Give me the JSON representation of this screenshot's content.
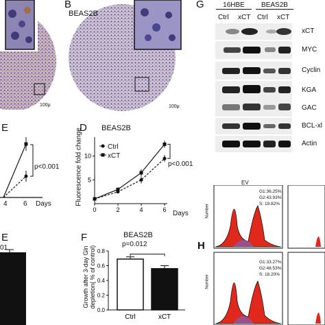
{
  "panels": {
    "A": {
      "letter": "A",
      "scale": "100μ"
    },
    "B": {
      "letter": "B",
      "title": "BEAS2B",
      "scale": "100μ"
    },
    "C": {
      "letter": "E",
      "pvalue": "p<0.001",
      "xlabel": "Days",
      "ticks": [
        "4",
        "6"
      ]
    },
    "D": {
      "letter": "D",
      "title": "BEAS2B",
      "ylabel": "Fluorescence fold change",
      "pvalue": "p<0.001",
      "xlabel": "Days",
      "xticks": [
        "0",
        "2",
        "4",
        "6"
      ],
      "yticks": [
        "5",
        "10"
      ],
      "legend": [
        {
          "name": "Ctrl"
        },
        {
          "name": "xCT"
        }
      ]
    },
    "E": {
      "letter": "E",
      "fragment": "01"
    },
    "F": {
      "letter": "F",
      "title": "BEAS2B",
      "pvalue": "p=0.012",
      "ylabel_lines": [
        "Growth after 3-day Gln",
        "depletion( % of control)"
      ],
      "yticks": [
        "0.0",
        "0.2",
        "0.4",
        "0.6",
        "0.8"
      ],
      "categories": [
        "Ctrl",
        "xCT"
      ]
    },
    "G": {
      "letter": "G",
      "groups": [
        "16HBE",
        "BEAS2B"
      ],
      "lanes": [
        "Ctrl",
        "xCT",
        "Ctrl",
        "xCT"
      ],
      "blots": [
        "xCT",
        "MYC",
        "Cyclin",
        "KGA",
        "GAC",
        "BCL-xl",
        "Actin"
      ]
    },
    "H": {
      "letter": "H",
      "title": "EV",
      "axis_label": "Number",
      "stats_top": [
        "G1:36.25%",
        "G2:43.93%",
        "S: 19.82%"
      ],
      "stats_bottom": [
        "G1:33.27%",
        "G2:48.53%",
        "S: 18.20%"
      ]
    }
  },
  "chart_data": [
    {
      "type": "line",
      "title": "BEAS2B",
      "xlabel": "Days",
      "ylabel": "Fluorescence fold change",
      "x": [
        0,
        2,
        4,
        6
      ],
      "ylim": [
        0,
        14
      ],
      "series": [
        {
          "name": "Ctrl",
          "values": [
            1,
            2.5,
            5,
            9.5
          ]
        },
        {
          "name": "xCT",
          "values": [
            1,
            3,
            6.5,
            12.5
          ]
        }
      ]
    },
    {
      "type": "bar",
      "title": "BEAS2B",
      "categories": [
        "Ctrl",
        "xCT"
      ],
      "values": [
        0.69,
        0.56
      ],
      "errors": [
        0.03,
        0.04
      ],
      "ylim": [
        0,
        0.8
      ]
    }
  ]
}
